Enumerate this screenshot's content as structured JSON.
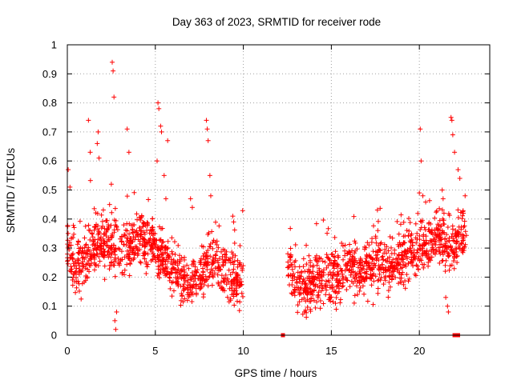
{
  "chart_data": {
    "type": "scatter",
    "title": "Day 363 of 2023, SRMTID for receiver rode",
    "xlabel": "GPS time / hours",
    "ylabel": "SRMTID / TECUs",
    "xlim": [
      0,
      24
    ],
    "ylim": [
      0,
      1
    ],
    "xticks": [
      0,
      5,
      10,
      15,
      20
    ],
    "xtick_labels": [
      "0",
      "5",
      "10",
      "15",
      "20"
    ],
    "yticks": [
      0,
      0.1,
      0.2,
      0.3,
      0.4,
      0.5,
      0.6,
      0.7,
      0.8,
      0.9,
      1
    ],
    "ytick_labels": [
      "0",
      "0.1",
      "0.2",
      "0.3",
      "0.4",
      "0.5",
      "0.6",
      "0.7",
      "0.8",
      "0.9",
      "1"
    ],
    "grid": true,
    "marker": "plus",
    "color": "#ff0000",
    "series": [
      {
        "name": "SRMTID",
        "segments": [
          {
            "x_start": 0.0,
            "x_end": 10.0,
            "envelope": [
              [
                0.0,
                0.3
              ],
              [
                0.5,
                0.22
              ],
              [
                1.0,
                0.27
              ],
              [
                1.5,
                0.3
              ],
              [
                2.0,
                0.33
              ],
              [
                2.5,
                0.3
              ],
              [
                3.0,
                0.28
              ],
              [
                3.5,
                0.31
              ],
              [
                4.0,
                0.33
              ],
              [
                4.5,
                0.32
              ],
              [
                5.0,
                0.3
              ],
              [
                5.5,
                0.26
              ],
              [
                6.0,
                0.21
              ],
              [
                6.5,
                0.19
              ],
              [
                7.0,
                0.18
              ],
              [
                7.5,
                0.2
              ],
              [
                8.0,
                0.25
              ],
              [
                8.5,
                0.24
              ],
              [
                9.0,
                0.2
              ],
              [
                9.5,
                0.19
              ],
              [
                10.0,
                0.18
              ]
            ]
          },
          {
            "x_start": 12.5,
            "x_end": 22.7,
            "envelope": [
              [
                12.5,
                0.23
              ],
              [
                13.0,
                0.18
              ],
              [
                13.5,
                0.16
              ],
              [
                14.0,
                0.17
              ],
              [
                14.5,
                0.2
              ],
              [
                15.0,
                0.2
              ],
              [
                15.5,
                0.21
              ],
              [
                16.0,
                0.22
              ],
              [
                16.5,
                0.22
              ],
              [
                17.0,
                0.23
              ],
              [
                17.5,
                0.24
              ],
              [
                18.0,
                0.25
              ],
              [
                18.5,
                0.24
              ],
              [
                19.0,
                0.26
              ],
              [
                19.5,
                0.28
              ],
              [
                20.0,
                0.3
              ],
              [
                20.5,
                0.32
              ],
              [
                21.0,
                0.34
              ],
              [
                21.5,
                0.31
              ],
              [
                22.0,
                0.3
              ],
              [
                22.5,
                0.34
              ],
              [
                22.7,
                0.33
              ]
            ]
          }
        ],
        "spikes": [
          [
            0.05,
            0.57
          ],
          [
            0.15,
            0.51
          ],
          [
            1.2,
            0.74
          ],
          [
            1.3,
            0.63
          ],
          [
            1.7,
            0.66
          ],
          [
            1.75,
            0.7
          ],
          [
            1.8,
            0.61
          ],
          [
            2.4,
            0.45
          ],
          [
            2.5,
            0.52
          ],
          [
            2.55,
            0.94
          ],
          [
            2.6,
            0.91
          ],
          [
            2.65,
            0.82
          ],
          [
            2.7,
            0.05
          ],
          [
            2.75,
            0.02
          ],
          [
            2.8,
            0.08
          ],
          [
            3.4,
            0.71
          ],
          [
            3.5,
            0.63
          ],
          [
            5.1,
            0.6
          ],
          [
            5.15,
            0.8
          ],
          [
            5.2,
            0.78
          ],
          [
            5.3,
            0.72
          ],
          [
            5.35,
            0.7
          ],
          [
            5.5,
            0.55
          ],
          [
            5.6,
            0.47
          ],
          [
            5.7,
            0.67
          ],
          [
            7.0,
            0.47
          ],
          [
            7.1,
            0.44
          ],
          [
            7.9,
            0.74
          ],
          [
            7.95,
            0.71
          ],
          [
            8.0,
            0.67
          ],
          [
            8.1,
            0.55
          ],
          [
            8.15,
            0.48
          ],
          [
            9.4,
            0.41
          ],
          [
            9.45,
            0.39
          ],
          [
            20.05,
            0.71
          ],
          [
            20.1,
            0.6
          ],
          [
            20.0,
            0.49
          ],
          [
            20.2,
            0.48
          ],
          [
            21.3,
            0.5
          ],
          [
            21.35,
            0.47
          ],
          [
            21.4,
            0.42
          ],
          [
            21.5,
            0.13
          ],
          [
            21.6,
            0.1
          ],
          [
            21.65,
            0.08
          ],
          [
            21.8,
            0.75
          ],
          [
            21.85,
            0.74
          ],
          [
            21.9,
            0.69
          ],
          [
            22.0,
            0.63
          ],
          [
            22.2,
            0.57
          ],
          [
            22.3,
            0.54
          ],
          [
            22.5,
            0.42
          ],
          [
            22.6,
            0.48
          ]
        ],
        "zero_points": [
          12.25,
          22.0,
          22.05,
          22.1,
          22.15,
          22.2
        ]
      }
    ]
  }
}
